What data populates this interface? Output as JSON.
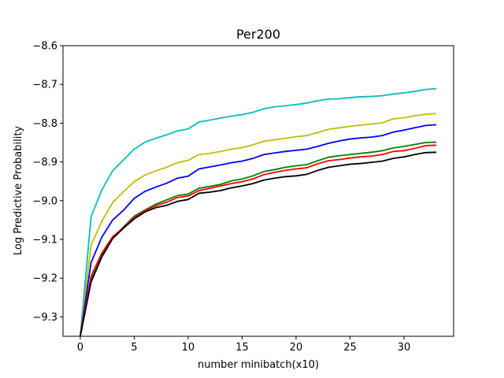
{
  "chart_data": {
    "type": "line",
    "title": "Per200",
    "xlabel": "number minibatch(x10)",
    "ylabel": "Log Predictive Probability",
    "xlim": [
      -1.6,
      34.6
    ],
    "ylim": [
      -9.35,
      -8.6
    ],
    "xticks": [
      0,
      5,
      10,
      15,
      20,
      25,
      30
    ],
    "yticks": [
      -9.3,
      -9.2,
      -9.1,
      -9.0,
      -8.9,
      -8.8,
      -8.7,
      -8.6
    ],
    "ytick_labels": [
      "−9.3",
      "−9.2",
      "−9.1",
      "−9.0",
      "−8.9",
      "−8.8",
      "−8.7",
      "−8.6"
    ],
    "grid": false,
    "legend": "none",
    "x": [
      0,
      1,
      2,
      3,
      4,
      5,
      6,
      7,
      8,
      9,
      10,
      11,
      12,
      13,
      14,
      15,
      16,
      17,
      18,
      19,
      20,
      21,
      22,
      23,
      24,
      25,
      26,
      27,
      28,
      29,
      30,
      31,
      32,
      33
    ],
    "series": [
      {
        "color": "#00bfbf",
        "values": [
          -9.35,
          -9.042,
          -8.972,
          -8.923,
          -8.895,
          -8.867,
          -8.849,
          -8.839,
          -8.83,
          -8.82,
          -8.815,
          -8.797,
          -8.792,
          -8.787,
          -8.782,
          -8.778,
          -8.772,
          -8.763,
          -8.758,
          -8.755,
          -8.752,
          -8.748,
          -8.742,
          -8.738,
          -8.737,
          -8.734,
          -8.732,
          -8.731,
          -8.729,
          -8.725,
          -8.722,
          -8.718,
          -8.713,
          -8.711
        ]
      },
      {
        "color": "#bfbf00",
        "values": [
          -9.35,
          -9.115,
          -9.053,
          -9.005,
          -8.977,
          -8.951,
          -8.934,
          -8.923,
          -8.914,
          -8.902,
          -8.896,
          -8.881,
          -8.878,
          -8.873,
          -8.867,
          -8.863,
          -8.856,
          -8.847,
          -8.843,
          -8.839,
          -8.835,
          -8.832,
          -8.824,
          -8.816,
          -8.812,
          -8.808,
          -8.805,
          -8.802,
          -8.799,
          -8.789,
          -8.786,
          -8.781,
          -8.777,
          -8.775
        ]
      },
      {
        "color": "#0000ff",
        "values": [
          -9.35,
          -9.16,
          -9.094,
          -9.05,
          -9.025,
          -8.994,
          -8.976,
          -8.965,
          -8.955,
          -8.942,
          -8.937,
          -8.918,
          -8.913,
          -8.908,
          -8.902,
          -8.898,
          -8.891,
          -8.881,
          -8.877,
          -8.873,
          -8.87,
          -8.867,
          -8.86,
          -8.852,
          -8.846,
          -8.841,
          -8.838,
          -8.836,
          -8.832,
          -8.823,
          -8.818,
          -8.812,
          -8.806,
          -8.804
        ]
      },
      {
        "color": "#008000",
        "values": [
          -9.35,
          -9.205,
          -9.141,
          -9.096,
          -9.068,
          -9.04,
          -9.024,
          -9.009,
          -8.998,
          -8.987,
          -8.983,
          -8.968,
          -8.963,
          -8.958,
          -8.949,
          -8.944,
          -8.936,
          -8.925,
          -8.92,
          -8.914,
          -8.91,
          -8.907,
          -8.897,
          -8.888,
          -8.884,
          -8.881,
          -8.878,
          -8.875,
          -8.871,
          -8.864,
          -8.86,
          -8.855,
          -8.85,
          -8.849
        ]
      },
      {
        "color": "#ff0000",
        "values": [
          -9.35,
          -9.195,
          -9.135,
          -9.093,
          -9.07,
          -9.043,
          -9.026,
          -9.013,
          -9.004,
          -8.992,
          -8.988,
          -8.974,
          -8.968,
          -8.962,
          -8.956,
          -8.951,
          -8.944,
          -8.933,
          -8.927,
          -8.922,
          -8.918,
          -8.915,
          -8.905,
          -8.897,
          -8.894,
          -8.89,
          -8.887,
          -8.885,
          -8.881,
          -8.873,
          -8.871,
          -8.865,
          -8.858,
          -8.857
        ]
      },
      {
        "color": "#000000",
        "values": [
          -9.35,
          -9.21,
          -9.145,
          -9.098,
          -9.071,
          -9.047,
          -9.029,
          -9.018,
          -9.012,
          -9.002,
          -8.997,
          -8.981,
          -8.978,
          -8.974,
          -8.967,
          -8.962,
          -8.956,
          -8.947,
          -8.942,
          -8.938,
          -8.936,
          -8.932,
          -8.922,
          -8.914,
          -8.91,
          -8.906,
          -8.904,
          -8.901,
          -8.898,
          -8.891,
          -8.887,
          -8.881,
          -8.876,
          -8.875
        ]
      }
    ]
  }
}
